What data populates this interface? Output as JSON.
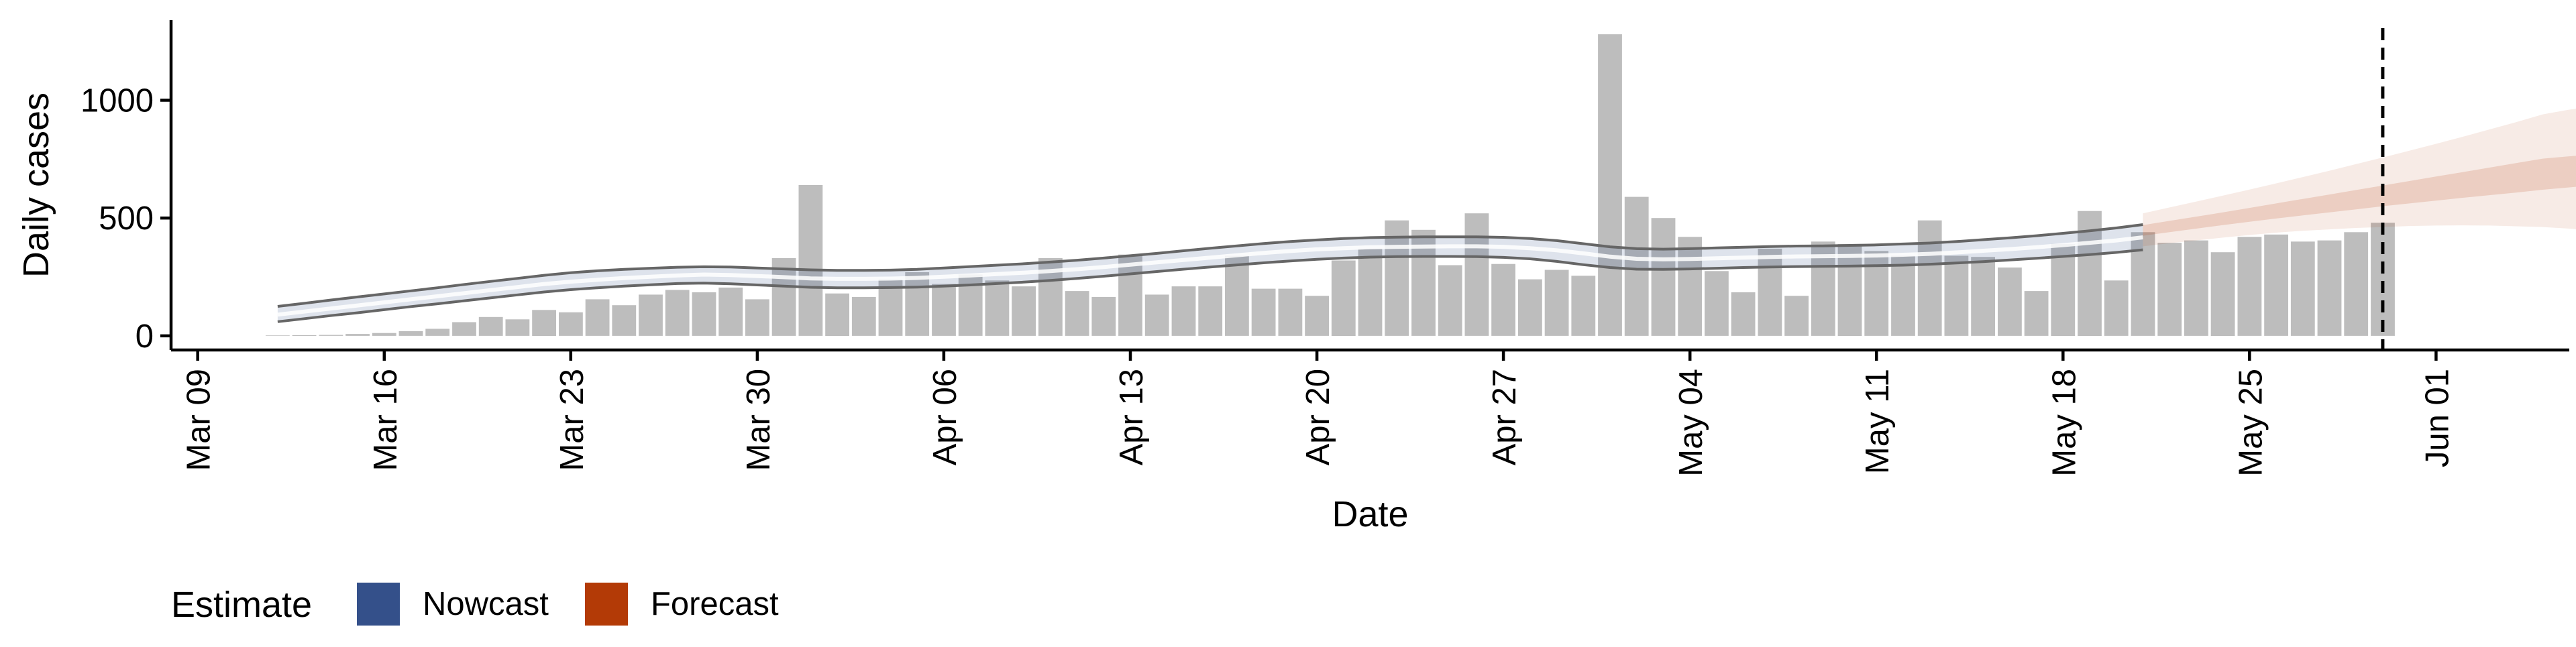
{
  "chart_data": {
    "type": "bar",
    "xlabel": "Date",
    "ylabel": "Daily cases",
    "x_ticks": [
      "Mar 09",
      "Mar 16",
      "Mar 23",
      "Mar 30",
      "Apr 06",
      "Apr 13",
      "Apr 20",
      "Apr 27",
      "May 04",
      "May 11",
      "May 18",
      "May 25",
      "Jun 01"
    ],
    "x_tick_dates": [
      "2020-03-09",
      "2020-03-16",
      "2020-03-23",
      "2020-03-30",
      "2020-04-06",
      "2020-04-13",
      "2020-04-20",
      "2020-04-27",
      "2020-05-04",
      "2020-05-11",
      "2020-05-18",
      "2020-05-25",
      "2020-06-01"
    ],
    "xlim": [
      "2020-03-08",
      "2020-06-06"
    ],
    "y_ticks": [
      0,
      500,
      1000
    ],
    "ylim": [
      -60,
      1340
    ],
    "grid": false,
    "legend": {
      "title": "Estimate",
      "position": "bottom-left",
      "items": [
        {
          "label": "Nowcast",
          "color": "#34508a"
        },
        {
          "label": "Forecast",
          "color": "#b33a06"
        }
      ]
    },
    "reference_line": {
      "date": "2020-05-30",
      "style": "dashed",
      "color": "#000000"
    },
    "bars": {
      "color": "#bdbdbd",
      "start_date": "2020-03-12",
      "values": [
        2,
        3,
        4,
        8,
        12,
        20,
        30,
        58,
        80,
        70,
        110,
        100,
        155,
        130,
        175,
        195,
        185,
        205,
        155,
        330,
        640,
        180,
        165,
        240,
        270,
        220,
        260,
        235,
        210,
        330,
        190,
        165,
        345,
        175,
        210,
        210,
        340,
        200,
        200,
        170,
        320,
        370,
        490,
        450,
        300,
        520,
        305,
        240,
        280,
        255,
        1280,
        590,
        500,
        420,
        275,
        185,
        370,
        170,
        400,
        390,
        360,
        340,
        490,
        340,
        335,
        290,
        190,
        390,
        530,
        235,
        440,
        395,
        405,
        355,
        420,
        430,
        400,
        405,
        440,
        480
      ]
    },
    "series": [
      {
        "name": "Nowcast",
        "color": "#34508a",
        "start_date": "2020-03-12",
        "median": [
          90,
          103,
          116,
          129,
          142,
          155,
          168,
          181,
          194,
          207,
          220,
          230,
          238,
          245,
          251,
          256,
          260,
          258,
          254,
          249,
          244,
          242,
          242,
          243,
          246,
          251,
          256,
          262,
          268,
          275,
          283,
          292,
          302,
          312,
          322,
          332,
          342,
          352,
          360,
          367,
          372,
          376,
          378,
          379,
          380,
          380,
          378,
          372,
          363,
          350,
          336,
          327,
          325,
          326,
          329,
          332,
          335,
          337,
          338,
          339,
          341,
          344,
          348,
          354,
          361,
          368,
          376,
          385,
          395,
          405,
          418
        ],
        "lower": [
          60,
          73,
          86,
          98,
          111,
          124,
          136,
          149,
          161,
          174,
          186,
          196,
          204,
          211,
          217,
          222,
          224,
          221,
          216,
          211,
          206,
          204,
          204,
          205,
          207,
          211,
          216,
          222,
          228,
          235,
          244,
          253,
          263,
          273,
          283,
          292,
          301,
          310,
          318,
          325,
          330,
          334,
          336,
          337,
          337,
          336,
          333,
          327,
          316,
          302,
          290,
          283,
          282,
          284,
          287,
          290,
          292,
          294,
          295,
          296,
          298,
          300,
          304,
          309,
          315,
          322,
          329,
          337,
          345,
          354,
          365
        ],
        "upper": [
          125,
          138,
          152,
          165,
          178,
          191,
          204,
          218,
          231,
          244,
          257,
          268,
          276,
          282,
          287,
          291,
          293,
          292,
          288,
          284,
          280,
          278,
          278,
          279,
          282,
          288,
          294,
          300,
          306,
          313,
          321,
          330,
          340,
          350,
          361,
          372,
          382,
          392,
          400,
          407,
          413,
          417,
          419,
          420,
          420,
          420,
          418,
          413,
          404,
          391,
          378,
          370,
          368,
          370,
          373,
          376,
          379,
          381,
          382,
          384,
          386,
          390,
          394,
          400,
          408,
          416,
          425,
          435,
          446,
          458,
          472
        ]
      },
      {
        "name": "Forecast",
        "color": "#b33a06",
        "start_date": "2020-05-21",
        "lower50": [
          425,
          440,
          455,
          470,
          484,
          498,
          511,
          524,
          537,
          550,
          562,
          574,
          586,
          597,
          608,
          620,
          630,
          640
        ],
        "upper50": [
          470,
          488,
          506,
          524,
          543,
          562,
          581,
          600,
          619,
          638,
          657,
          676,
          695,
          714,
          733,
          752,
          762,
          770
        ],
        "lower90": [
          380,
          393,
          405,
          417,
          428,
          438,
          446,
          452,
          458,
          462,
          466,
          468,
          469,
          468,
          465,
          462,
          455,
          445
        ],
        "upper90": [
          520,
          545,
          570,
          595,
          621,
          647,
          674,
          701,
          729,
          757,
          786,
          815,
          845,
          876,
          907,
          940,
          960,
          975
        ]
      }
    ]
  }
}
